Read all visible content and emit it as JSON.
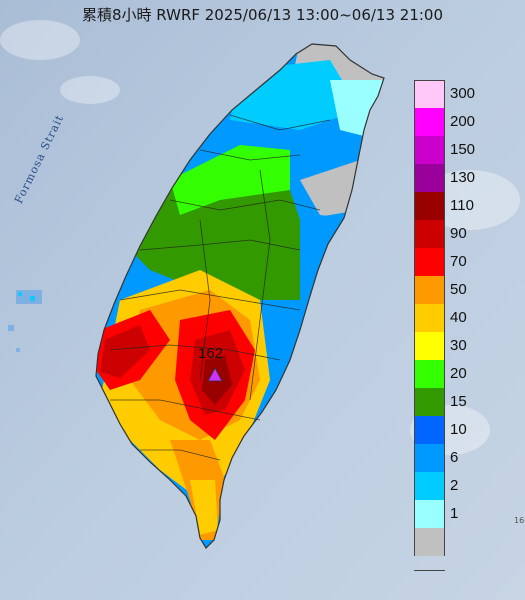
{
  "title": "累積8小時 RWRF 2025/06/13 13:00~06/13 21:00",
  "strait_label": "Formosa Strait",
  "max_value_label": "162",
  "corner_mark": "16",
  "legend": [
    {
      "label": "300",
      "color": "#ffc8f8"
    },
    {
      "label": "200",
      "color": "#ff00ff"
    },
    {
      "label": "150",
      "color": "#cc00cc"
    },
    {
      "label": "130",
      "color": "#9a009a"
    },
    {
      "label": "110",
      "color": "#990000"
    },
    {
      "label": "90",
      "color": "#cc0000"
    },
    {
      "label": "70",
      "color": "#ff0000"
    },
    {
      "label": "50",
      "color": "#ff9900"
    },
    {
      "label": "40",
      "color": "#ffcc00"
    },
    {
      "label": "30",
      "color": "#ffff00"
    },
    {
      "label": "20",
      "color": "#33ff00"
    },
    {
      "label": "15",
      "color": "#339900"
    },
    {
      "label": "10",
      "color": "#0066ff"
    },
    {
      "label": "6",
      "color": "#0099ff"
    },
    {
      "label": "2",
      "color": "#00ccff"
    },
    {
      "label": "1",
      "color": "#99ffff"
    },
    {
      "label": "",
      "color": "#c0c0c0"
    }
  ],
  "colors": {
    "sea": "#b8c9de",
    "island_outline": "#333333",
    "max_marker": "#cc33ff"
  }
}
